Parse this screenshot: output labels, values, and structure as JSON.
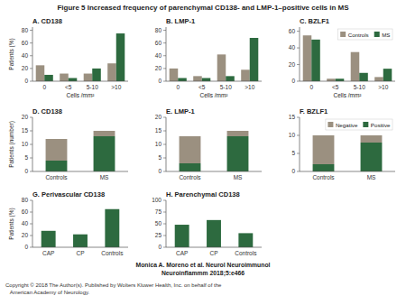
{
  "title": "Figure 5 Increased frequency of parenchymal CD138- and LMP-1–positive cells in MS",
  "subtitle": "Monica A. Moreno et al. Neurol Neuroimmunol\nNeuroinflammm 2018;5:e466",
  "annotations": [
    "Copyright © 2018 The Author(s). Published by Wolters Kluwer Health, Inc. on behalf of the\n   American Academy of Neurology."
  ],
  "chart_data": [
    {
      "type": "bar",
      "title": "A. CD138",
      "xlabel": "Cells /mm²",
      "ylabel": "Patients (%)",
      "categories": [
        "0",
        "<5",
        "5-10",
        ">10"
      ],
      "series": [
        {
          "color": "#9B9080",
          "values": [
            25,
            12,
            12,
            28
          ]
        },
        {
          "color": "#2D6A3F",
          "values": [
            10,
            5,
            20,
            75
          ]
        }
      ],
      "ylim": [
        0,
        85
      ],
      "yticks": [
        0,
        20,
        40,
        60,
        80
      ]
    },
    {
      "type": "bar",
      "title": "B. LMP-1",
      "xlabel": "Cells /mm²",
      "categories": [
        "0",
        "<5",
        "5-10",
        ">10"
      ],
      "series": [
        {
          "color": "#9B9080",
          "values": [
            20,
            8,
            42,
            18
          ]
        },
        {
          "color": "#2D6A3F",
          "values": [
            5,
            5,
            8,
            68
          ]
        }
      ],
      "ylim": [
        0,
        85
      ],
      "yticks": [
        0,
        20,
        40,
        60,
        80
      ]
    },
    {
      "type": "bar",
      "title": "C. BZLF1",
      "xlabel": "Cells /mm²",
      "categories": [
        "0",
        "<5",
        "5-10",
        ">10"
      ],
      "series": [
        {
          "name": "Controls",
          "color": "#9B9080",
          "values": [
            55,
            3,
            35,
            5
          ]
        },
        {
          "name": "MS",
          "color": "#2D6A3F",
          "values": [
            50,
            3,
            10,
            15
          ]
        }
      ],
      "ylim": [
        0,
        65
      ],
      "yticks": [
        0,
        20,
        40,
        60
      ],
      "legend": "upper right"
    },
    {
      "type": "bar",
      "stacked": true,
      "title": "D. CD138",
      "ylabel": "Patients (number)",
      "categories": [
        "Controls",
        "MS"
      ],
      "series": [
        {
          "color": "#2D6A3F",
          "values": [
            4,
            13
          ]
        },
        {
          "color": "#9B9080",
          "values": [
            8,
            2
          ]
        }
      ],
      "ylim": [
        0,
        20
      ],
      "yticks": [
        0,
        5,
        10,
        15,
        20
      ]
    },
    {
      "type": "bar",
      "stacked": true,
      "title": "E. LMP-1",
      "categories": [
        "Controls",
        "MS"
      ],
      "series": [
        {
          "color": "#2D6A3F",
          "values": [
            3,
            13
          ]
        },
        {
          "color": "#9B9080",
          "values": [
            10,
            2
          ]
        }
      ],
      "ylim": [
        0,
        20
      ],
      "yticks": [
        0,
        5,
        10,
        15,
        20
      ]
    },
    {
      "type": "bar",
      "stacked": true,
      "title": "F. BZLF1",
      "categories": [
        "Controls",
        "MS"
      ],
      "series": [
        {
          "name": "Positive",
          "color": "#2D6A3F",
          "values": [
            2,
            8
          ]
        },
        {
          "name": "Negative",
          "color": "#9B9080",
          "values": [
            8,
            2
          ]
        }
      ],
      "ylim": [
        0,
        15
      ],
      "yticks": [
        0,
        5,
        10,
        15
      ],
      "legend": "upper right"
    },
    {
      "type": "bar",
      "title": "G. Perivascular CD138",
      "ylabel": "Patients (%)",
      "categories": [
        "CAP",
        "CP",
        "Controls"
      ],
      "values": [
        28,
        22,
        65
      ],
      "color": "#2D6A3F",
      "ylim": [
        0,
        80
      ],
      "yticks": [
        0,
        20,
        40,
        60,
        80
      ]
    },
    {
      "type": "bar",
      "title": "H. Parenchymal CD138",
      "categories": [
        "CAP",
        "CP",
        "Controls"
      ],
      "values": [
        48,
        58,
        30
      ],
      "color": "#2D6A3F",
      "ylim": [
        0,
        100
      ],
      "yticks": [
        0,
        25,
        50,
        75,
        100
      ]
    }
  ]
}
